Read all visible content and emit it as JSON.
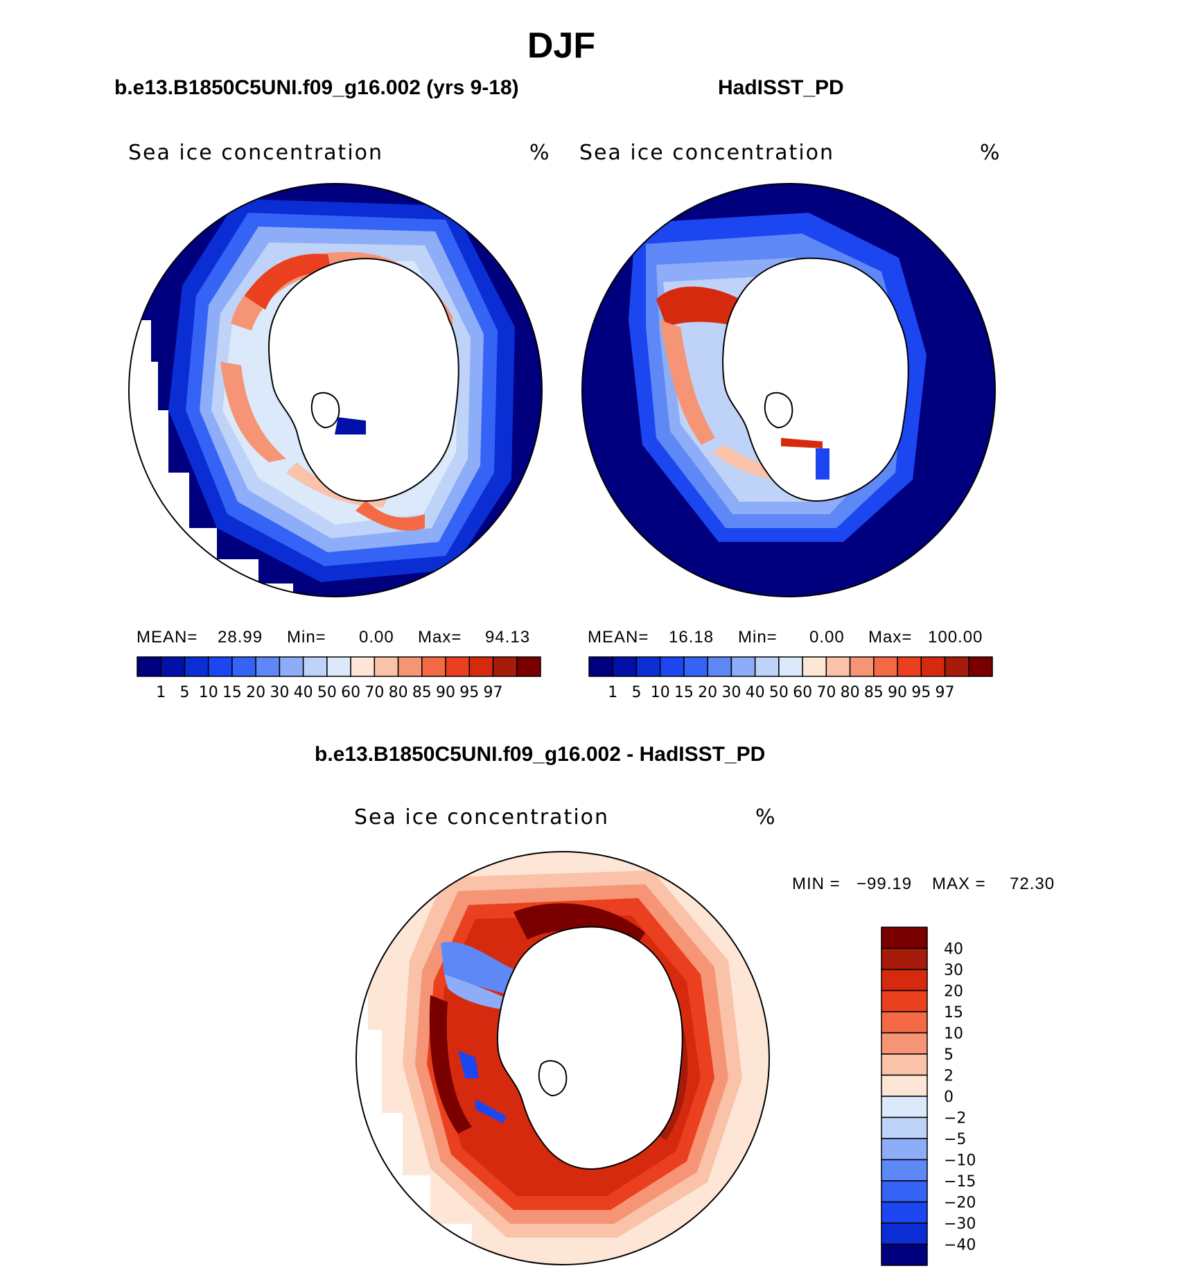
{
  "page_title": "DJF",
  "panels": [
    {
      "title": "b.e13.B1850C5UNI.f09_g16.002 (yrs 9-18)",
      "var_label": "Sea ice concentration",
      "units": "%",
      "stats": {
        "mean_label": "MEAN=",
        "mean": "28.99",
        "min_label": "Min=",
        "min": "0.00",
        "max_label": "Max=",
        "max": "94.13"
      }
    },
    {
      "title": "HadISST_PD",
      "var_label": "Sea ice concentration",
      "units": "%",
      "stats": {
        "mean_label": "MEAN=",
        "mean": "16.18",
        "min_label": "Min=",
        "min": "0.00",
        "max_label": "Max=",
        "max": "100.00"
      }
    },
    {
      "title": "b.e13.B1850C5UNI.f09_g16.002 - HadISST_PD",
      "var_label": "Sea ice concentration",
      "units": "%",
      "stats": {
        "min_label": "MIN =",
        "min": "−99.19",
        "max_label": "MAX =",
        "max": "72.30"
      }
    }
  ],
  "chart_data": [
    {
      "type": "heatmap",
      "projection": "south-polar-stereographic",
      "title": "b.e13.B1850C5UNI.f09_g16.002 (yrs 9-18)",
      "variable": "Sea ice concentration",
      "units": "%",
      "mean": 28.99,
      "min": 0.0,
      "max": 94.13,
      "colorbar_orientation": "horizontal",
      "levels": [
        "1",
        "5",
        "10",
        "15",
        "20",
        "30",
        "40",
        "50",
        "60",
        "70",
        "80",
        "85",
        "90",
        "95",
        "97"
      ],
      "colors": [
        "#00007f",
        "#0010a8",
        "#0a2ed4",
        "#1c47f0",
        "#3563f5",
        "#5f88f7",
        "#8eadf8",
        "#bfd3f9",
        "#dbe9fb",
        "#fde6d6",
        "#f9c2a9",
        "#f59576",
        "#f36a45",
        "#ea4020",
        "#d62a0f",
        "#a71b0a",
        "#7a0000"
      ]
    },
    {
      "type": "heatmap",
      "projection": "south-polar-stereographic",
      "title": "HadISST_PD",
      "variable": "Sea ice concentration",
      "units": "%",
      "mean": 16.18,
      "min": 0.0,
      "max": 100.0,
      "colorbar_orientation": "horizontal",
      "levels": [
        "1",
        "5",
        "10",
        "15",
        "20",
        "30",
        "40",
        "50",
        "60",
        "70",
        "80",
        "85",
        "90",
        "95",
        "97"
      ],
      "colors": [
        "#00007f",
        "#0010a8",
        "#0a2ed4",
        "#1c47f0",
        "#3563f5",
        "#5f88f7",
        "#8eadf8",
        "#bfd3f9",
        "#dbe9fb",
        "#fde6d6",
        "#f9c2a9",
        "#f59576",
        "#f36a45",
        "#ea4020",
        "#d62a0f",
        "#a71b0a",
        "#7a0000"
      ]
    },
    {
      "type": "heatmap",
      "projection": "south-polar-stereographic",
      "title": "b.e13.B1850C5UNI.f09_g16.002 - HadISST_PD",
      "variable": "Sea ice concentration",
      "units": "%",
      "min": -99.19,
      "max": 72.3,
      "colorbar_orientation": "vertical",
      "levels": [
        "40",
        "30",
        "20",
        "15",
        "10",
        "5",
        "2",
        "0",
        "−2",
        "−5",
        "−10",
        "−15",
        "−20",
        "−30",
        "−40"
      ],
      "colors": [
        "#7a0000",
        "#a71b0a",
        "#d62a0f",
        "#ea4020",
        "#f36a45",
        "#f59576",
        "#f9c2a9",
        "#fde6d6",
        "#dbe9fb",
        "#bfd3f9",
        "#8eadf8",
        "#5f88f7",
        "#3563f5",
        "#1c47f0",
        "#0a2ed4",
        "#00007f"
      ]
    }
  ]
}
